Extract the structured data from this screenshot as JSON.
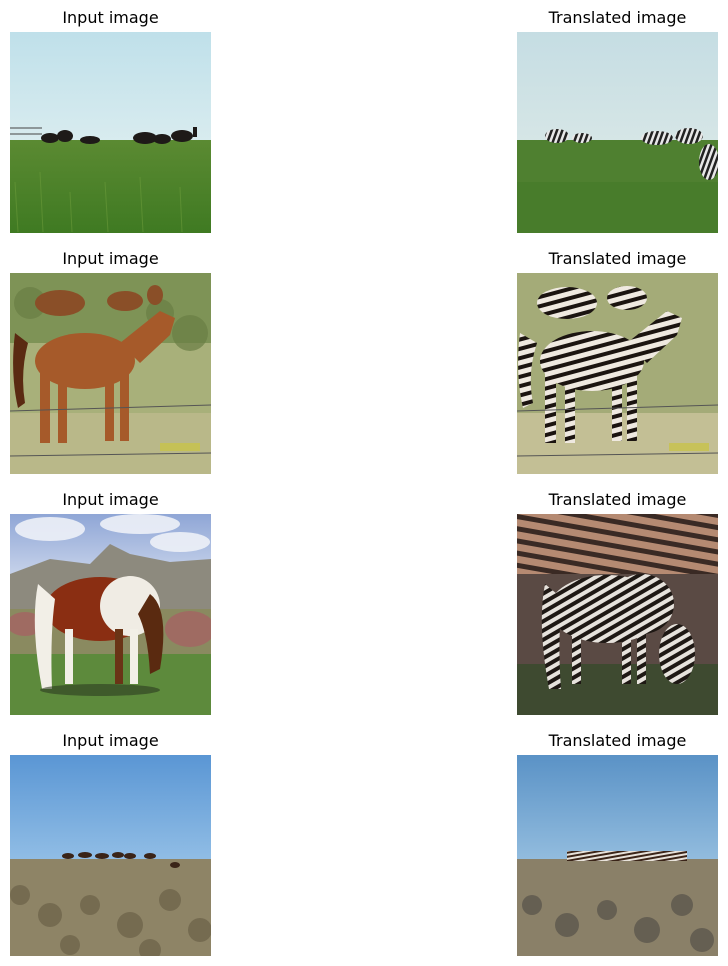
{
  "grid": {
    "rows": [
      {
        "input": {
          "title": "Input image",
          "scene": "horses grazing on green grassland under pale sky"
        },
        "output": {
          "title": "Translated image",
          "scene": "same grassland scene with zebra-striped animals"
        }
      },
      {
        "input": {
          "title": "Input image",
          "scene": "brown horses standing by a wire fence"
        },
        "output": {
          "title": "Translated image",
          "scene": "same scene with zebra-striped horses"
        }
      },
      {
        "input": {
          "title": "Input image",
          "scene": "brown and white pinto horse grazing on hillside"
        },
        "output": {
          "title": "Translated image",
          "scene": "zebra-striped version of the grazing horse"
        }
      },
      {
        "input": {
          "title": "Input image",
          "scene": "distant horses on sagebrush ridge under blue sky"
        },
        "output": {
          "title": "Translated image",
          "scene": "same ridge with striped distant animals"
        }
      }
    ]
  }
}
